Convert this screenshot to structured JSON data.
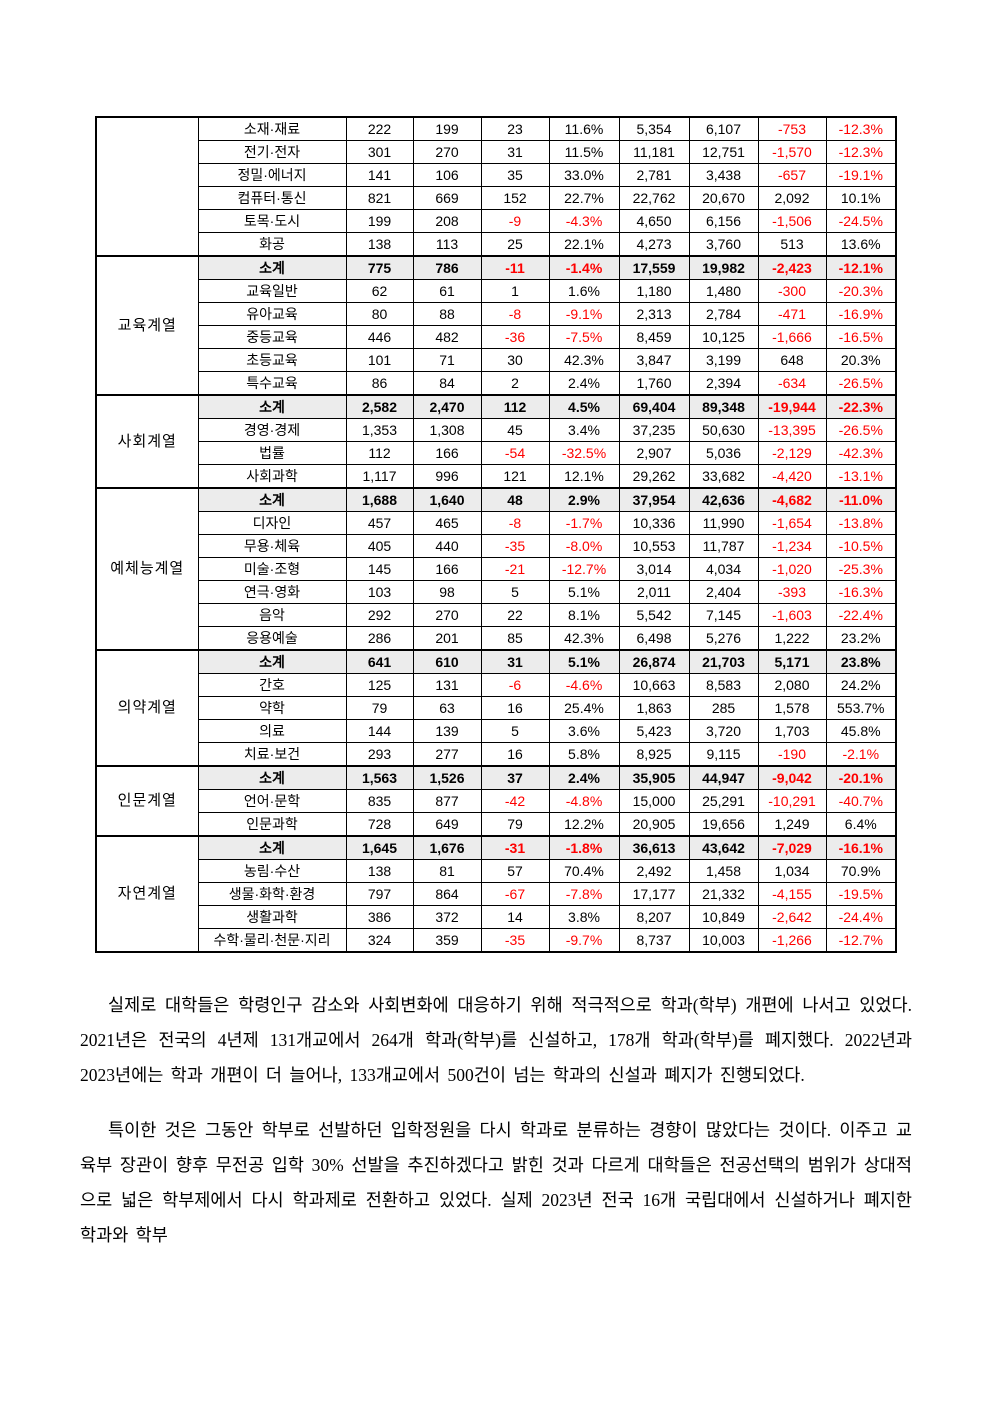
{
  "colors": {
    "negative": "#ff0000",
    "text": "#000000",
    "subtotal_background": "#ececec",
    "border": "#000000",
    "page_background": "#ffffff"
  },
  "table": {
    "groups": [
      {
        "name": "",
        "rows": [
          {
            "label": "소재·재료",
            "subtotal": false,
            "values": [
              "222",
              "199",
              "23",
              "11.6%",
              "5,354",
              "6,107",
              "-753",
              "-12.3%"
            ]
          },
          {
            "label": "전기·전자",
            "subtotal": false,
            "values": [
              "301",
              "270",
              "31",
              "11.5%",
              "11,181",
              "12,751",
              "-1,570",
              "-12.3%"
            ]
          },
          {
            "label": "정밀·에너지",
            "subtotal": false,
            "values": [
              "141",
              "106",
              "35",
              "33.0%",
              "2,781",
              "3,438",
              "-657",
              "-19.1%"
            ]
          },
          {
            "label": "컴퓨터·통신",
            "subtotal": false,
            "values": [
              "821",
              "669",
              "152",
              "22.7%",
              "22,762",
              "20,670",
              "2,092",
              "10.1%"
            ]
          },
          {
            "label": "토목·도시",
            "subtotal": false,
            "values": [
              "199",
              "208",
              "-9",
              "-4.3%",
              "4,650",
              "6,156",
              "-1,506",
              "-24.5%"
            ]
          },
          {
            "label": "화공",
            "subtotal": false,
            "values": [
              "138",
              "113",
              "25",
              "22.1%",
              "4,273",
              "3,760",
              "513",
              "13.6%"
            ]
          }
        ]
      },
      {
        "name": "교육계열",
        "rows": [
          {
            "label": "소계",
            "subtotal": true,
            "values": [
              "775",
              "786",
              "-11",
              "-1.4%",
              "17,559",
              "19,982",
              "-2,423",
              "-12.1%"
            ]
          },
          {
            "label": "교육일반",
            "subtotal": false,
            "values": [
              "62",
              "61",
              "1",
              "1.6%",
              "1,180",
              "1,480",
              "-300",
              "-20.3%"
            ]
          },
          {
            "label": "유아교육",
            "subtotal": false,
            "values": [
              "80",
              "88",
              "-8",
              "-9.1%",
              "2,313",
              "2,784",
              "-471",
              "-16.9%"
            ]
          },
          {
            "label": "중등교육",
            "subtotal": false,
            "values": [
              "446",
              "482",
              "-36",
              "-7.5%",
              "8,459",
              "10,125",
              "-1,666",
              "-16.5%"
            ]
          },
          {
            "label": "초등교육",
            "subtotal": false,
            "values": [
              "101",
              "71",
              "30",
              "42.3%",
              "3,847",
              "3,199",
              "648",
              "20.3%"
            ]
          },
          {
            "label": "특수교육",
            "subtotal": false,
            "values": [
              "86",
              "84",
              "2",
              "2.4%",
              "1,760",
              "2,394",
              "-634",
              "-26.5%"
            ]
          }
        ]
      },
      {
        "name": "사회계열",
        "rows": [
          {
            "label": "소계",
            "subtotal": true,
            "values": [
              "2,582",
              "2,470",
              "112",
              "4.5%",
              "69,404",
              "89,348",
              "-19,944",
              "-22.3%"
            ]
          },
          {
            "label": "경영·경제",
            "subtotal": false,
            "values": [
              "1,353",
              "1,308",
              "45",
              "3.4%",
              "37,235",
              "50,630",
              "-13,395",
              "-26.5%"
            ]
          },
          {
            "label": "법률",
            "subtotal": false,
            "values": [
              "112",
              "166",
              "-54",
              "-32.5%",
              "2,907",
              "5,036",
              "-2,129",
              "-42.3%"
            ]
          },
          {
            "label": "사회과학",
            "subtotal": false,
            "values": [
              "1,117",
              "996",
              "121",
              "12.1%",
              "29,262",
              "33,682",
              "-4,420",
              "-13.1%"
            ]
          }
        ]
      },
      {
        "name": "예체능계열",
        "rows": [
          {
            "label": "소계",
            "subtotal": true,
            "values": [
              "1,688",
              "1,640",
              "48",
              "2.9%",
              "37,954",
              "42,636",
              "-4,682",
              "-11.0%"
            ]
          },
          {
            "label": "디자인",
            "subtotal": false,
            "values": [
              "457",
              "465",
              "-8",
              "-1.7%",
              "10,336",
              "11,990",
              "-1,654",
              "-13.8%"
            ]
          },
          {
            "label": "무용·체육",
            "subtotal": false,
            "values": [
              "405",
              "440",
              "-35",
              "-8.0%",
              "10,553",
              "11,787",
              "-1,234",
              "-10.5%"
            ]
          },
          {
            "label": "미술·조형",
            "subtotal": false,
            "values": [
              "145",
              "166",
              "-21",
              "-12.7%",
              "3,014",
              "4,034",
              "-1,020",
              "-25.3%"
            ]
          },
          {
            "label": "연극·영화",
            "subtotal": false,
            "values": [
              "103",
              "98",
              "5",
              "5.1%",
              "2,011",
              "2,404",
              "-393",
              "-16.3%"
            ]
          },
          {
            "label": "음악",
            "subtotal": false,
            "values": [
              "292",
              "270",
              "22",
              "8.1%",
              "5,542",
              "7,145",
              "-1,603",
              "-22.4%"
            ]
          },
          {
            "label": "응용예술",
            "subtotal": false,
            "values": [
              "286",
              "201",
              "85",
              "42.3%",
              "6,498",
              "5,276",
              "1,222",
              "23.2%"
            ]
          }
        ]
      },
      {
        "name": "의약계열",
        "rows": [
          {
            "label": "소계",
            "subtotal": true,
            "values": [
              "641",
              "610",
              "31",
              "5.1%",
              "26,874",
              "21,703",
              "5,171",
              "23.8%"
            ]
          },
          {
            "label": "간호",
            "subtotal": false,
            "values": [
              "125",
              "131",
              "-6",
              "-4.6%",
              "10,663",
              "8,583",
              "2,080",
              "24.2%"
            ]
          },
          {
            "label": "약학",
            "subtotal": false,
            "values": [
              "79",
              "63",
              "16",
              "25.4%",
              "1,863",
              "285",
              "1,578",
              "553.7%"
            ]
          },
          {
            "label": "의료",
            "subtotal": false,
            "values": [
              "144",
              "139",
              "5",
              "3.6%",
              "5,423",
              "3,720",
              "1,703",
              "45.8%"
            ]
          },
          {
            "label": "치료·보건",
            "subtotal": false,
            "values": [
              "293",
              "277",
              "16",
              "5.8%",
              "8,925",
              "9,115",
              "-190",
              "-2.1%"
            ]
          }
        ]
      },
      {
        "name": "인문계열",
        "rows": [
          {
            "label": "소계",
            "subtotal": true,
            "values": [
              "1,563",
              "1,526",
              "37",
              "2.4%",
              "35,905",
              "44,947",
              "-9,042",
              "-20.1%"
            ]
          },
          {
            "label": "언어·문학",
            "subtotal": false,
            "values": [
              "835",
              "877",
              "-42",
              "-4.8%",
              "15,000",
              "25,291",
              "-10,291",
              "-40.7%"
            ]
          },
          {
            "label": "인문과학",
            "subtotal": false,
            "values": [
              "728",
              "649",
              "79",
              "12.2%",
              "20,905",
              "19,656",
              "1,249",
              "6.4%"
            ]
          }
        ]
      },
      {
        "name": "자연계열",
        "rows": [
          {
            "label": "소계",
            "subtotal": true,
            "values": [
              "1,645",
              "1,676",
              "-31",
              "-1.8%",
              "36,613",
              "43,642",
              "-7,029",
              "-16.1%"
            ]
          },
          {
            "label": "농림·수산",
            "subtotal": false,
            "values": [
              "138",
              "81",
              "57",
              "70.4%",
              "2,492",
              "1,458",
              "1,034",
              "70.9%"
            ]
          },
          {
            "label": "생물·화학·환경",
            "subtotal": false,
            "values": [
              "797",
              "864",
              "-67",
              "-7.8%",
              "17,177",
              "21,332",
              "-4,155",
              "-19.5%"
            ]
          },
          {
            "label": "생활과학",
            "subtotal": false,
            "values": [
              "386",
              "372",
              "14",
              "3.8%",
              "8,207",
              "10,849",
              "-2,642",
              "-24.4%"
            ]
          },
          {
            "label": "수학·물리·천문·지리",
            "subtotal": false,
            "values": [
              "324",
              "359",
              "-35",
              "-9.7%",
              "8,737",
              "10,003",
              "-1,266",
              "-12.7%"
            ]
          }
        ]
      }
    ]
  },
  "paragraphs": [
    "실제로 대학들은 학령인구 감소와 사회변화에 대응하기 위해 적극적으로 학과(학부) 개편에 나서고 있었다. 2021년은 전국의 4년제 131개교에서 264개 학과(학부)를 신설하고, 178개 학과(학부)를 폐지했다. 2022년과 2023년에는 학과 개편이 더 늘어나, 133개교에서 500건이 넘는 학과의 신설과 폐지가 진행되었다.",
    "특이한 것은 그동안 학부로 선발하던 입학정원을 다시 학과로 분류하는 경향이 많았다는 것이다. 이주고 교육부 장관이 향후 무전공 입학 30% 선발을 추진하겠다고 밝힌 것과 다르게 대학들은 전공선택의 범위가 상대적으로 넓은 학부제에서 다시 학과제로 전환하고 있었다. 실제 2023년 전국 16개 국립대에서 신설하거나 폐지한 학과와 학부"
  ]
}
